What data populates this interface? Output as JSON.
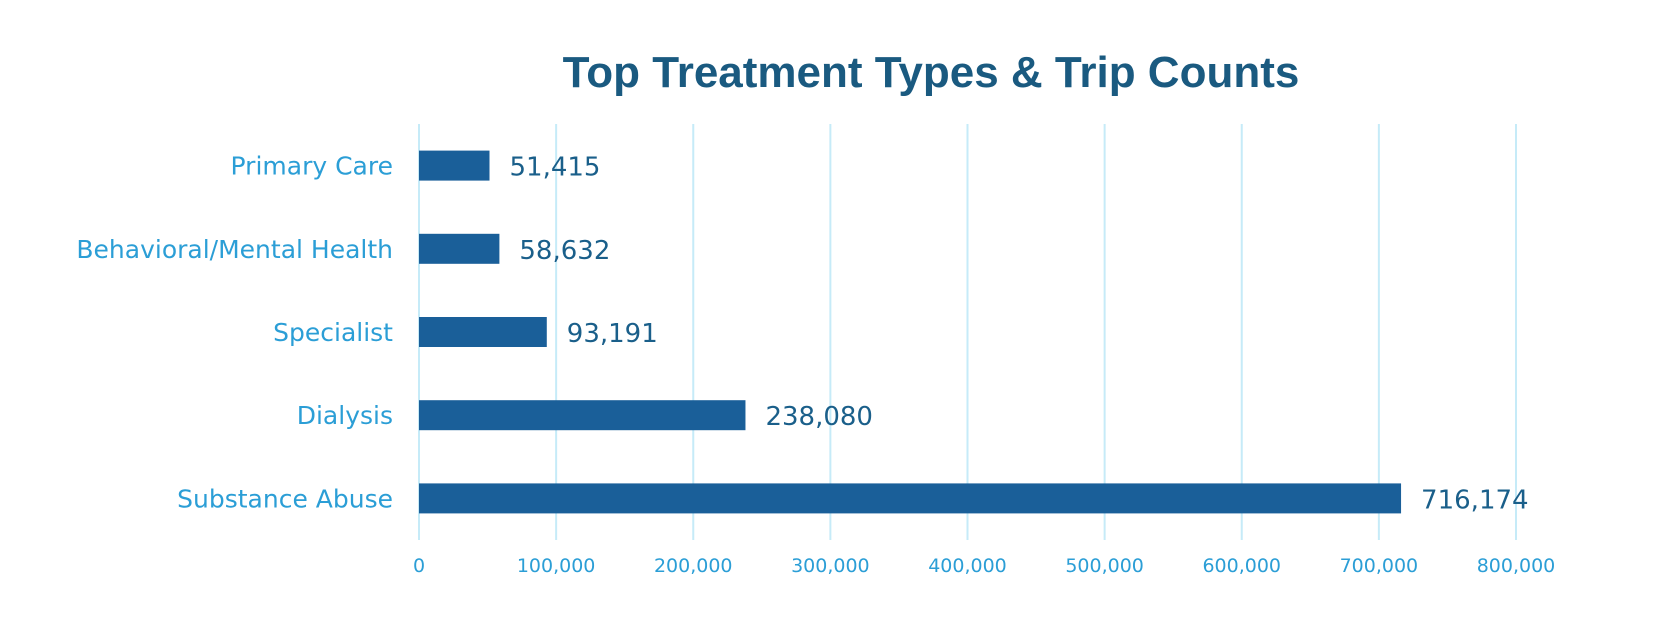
{
  "chart_data": {
    "type": "bar",
    "orientation": "horizontal",
    "title": "Top Treatment Types & Trip Counts",
    "xlabel": "",
    "ylabel": "",
    "categories": [
      "Primary Care",
      "Behavioral/Mental Health",
      "Specialist",
      "Dialysis",
      "Substance Abuse"
    ],
    "values": [
      51415,
      58632,
      93191,
      238080,
      716174
    ],
    "value_labels": [
      "51,415",
      "58,632",
      "93,191",
      "238,080",
      "716,174"
    ],
    "xlim": [
      0,
      800000
    ],
    "x_ticks": [
      0,
      100000,
      200000,
      300000,
      400000,
      500000,
      600000,
      700000,
      800000
    ],
    "x_tick_labels": [
      "0",
      "100,000",
      "200,000",
      "300,000",
      "400,000",
      "500,000",
      "600,000",
      "700,000",
      "800,000"
    ],
    "grid": "vertical",
    "legend": "none",
    "colors": {
      "bar": "#1a5f99",
      "title": "#1a5a80",
      "category_text": "#2b9ed6",
      "value_text": "#1a5f8a",
      "tick_text": "#2b9ed6",
      "grid": "#c6ebf8"
    }
  }
}
